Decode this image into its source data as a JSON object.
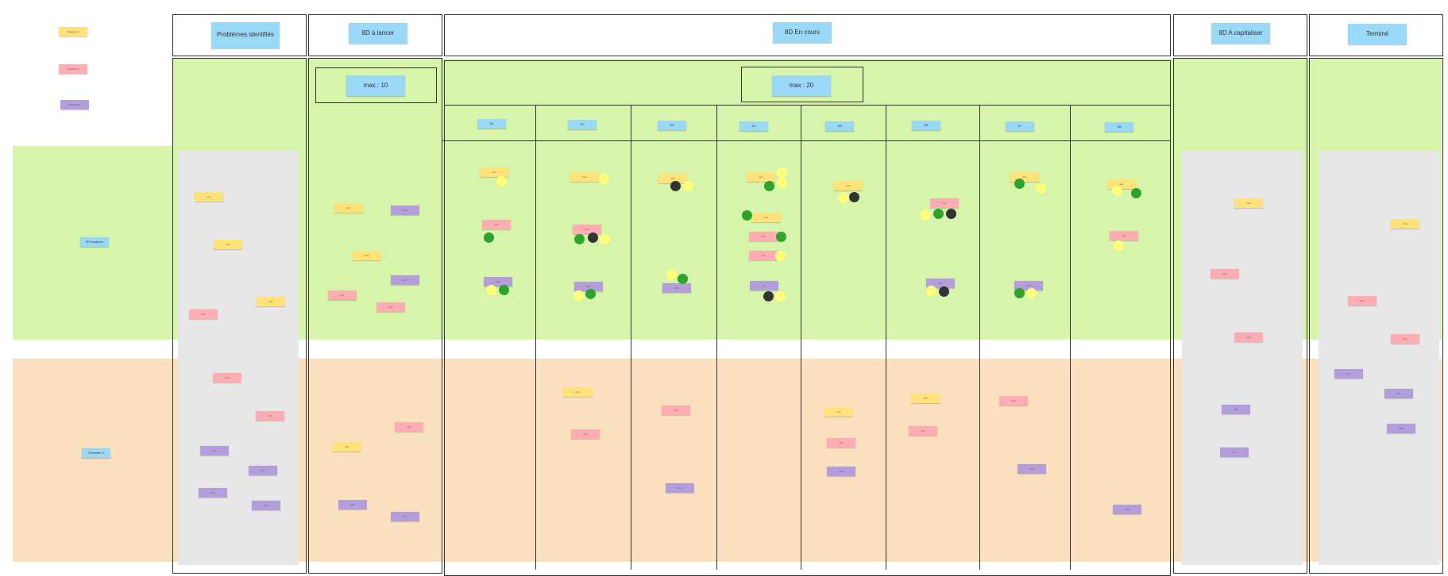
{
  "legend": [
    "Domaine 1",
    "Domaine 2",
    "Domaine 3"
  ],
  "swimlanes": {
    "lane1": "8D supports",
    "lane2": "Domaine 4"
  },
  "columns": {
    "problems": "Problèmes identifiés",
    "to_launch": "8D à lancer",
    "in_progress": "8D En cours",
    "capitalize": "8D A capitaliser",
    "done": "Terminé"
  },
  "wip": {
    "to_launch": "max : 10",
    "in_progress": "max : 20"
  },
  "steps": [
    "D1",
    "D2",
    "D3",
    "D4",
    "D5",
    "D6",
    "D7",
    "D8"
  ],
  "note_text": {
    "y": "text",
    "p": "text",
    "v": "text"
  },
  "colors": {
    "lane_green": "#d6f5aa",
    "lane_orange": "#fae0bf",
    "header_blue": "#99d8f7",
    "note_yellow": "#ffe27a",
    "note_pink": "#ffadb2",
    "note_purple": "#b39ddb",
    "dot_yellow": "#ffff7a",
    "dot_green": "#2ea32e",
    "dot_black": "#333333"
  }
}
